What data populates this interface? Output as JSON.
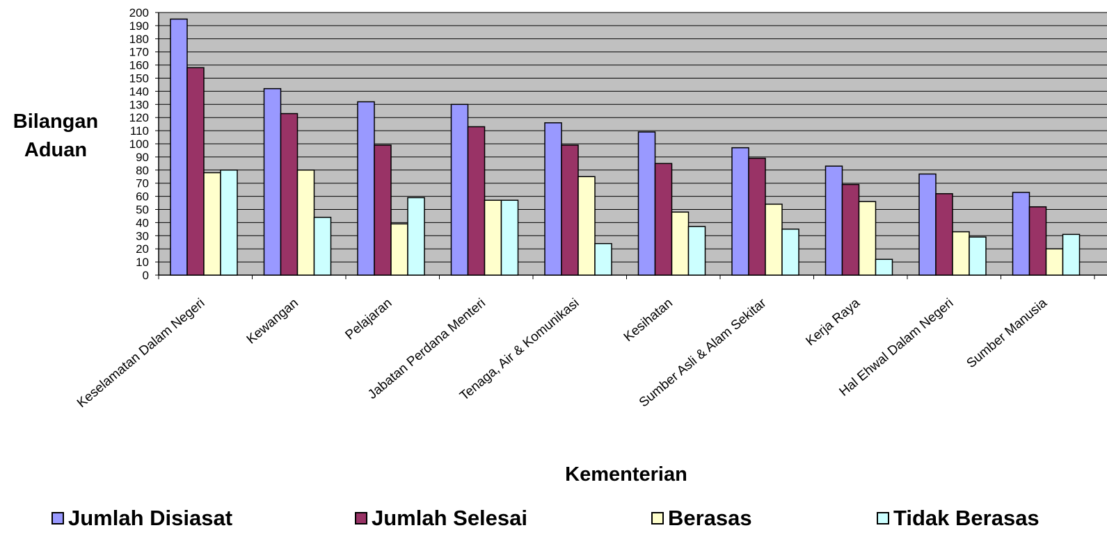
{
  "chart_data": {
    "type": "bar",
    "title": "",
    "xlabel": "Kementerian",
    "ylabel": [
      "Bilangan",
      "Aduan"
    ],
    "ylim": [
      0,
      200
    ],
    "ytick_step": 10,
    "grid": true,
    "plot_background": "#c0c0c0",
    "legend_position": "bottom",
    "categories": [
      "Keselamatan Dalam Negeri",
      "Kewangan",
      "Pelajaran",
      "Jabatan Perdana Menteri",
      "Tenaga, Air & Komunikasi",
      "Kesihatan",
      "Sumber Asli & Alam Sekitar",
      "Kerja Raya",
      "Hal Ehwal Dalam Negeri",
      "Sumber Manusia"
    ],
    "series": [
      {
        "name": "Jumlah Disiasat",
        "color": "#9999ff",
        "values": [
          195,
          142,
          132,
          130,
          116,
          109,
          97,
          83,
          77,
          63
        ]
      },
      {
        "name": "Jumlah Selesai",
        "color": "#993366",
        "values": [
          158,
          123,
          99,
          113,
          99,
          85,
          89,
          69,
          62,
          52
        ]
      },
      {
        "name": "Berasas",
        "color": "#ffffcc",
        "values": [
          78,
          80,
          39,
          57,
          75,
          48,
          54,
          56,
          33,
          20
        ]
      },
      {
        "name": "Tidak Berasas",
        "color": "#ccffff",
        "values": [
          80,
          44,
          59,
          57,
          24,
          37,
          35,
          12,
          29,
          31
        ]
      }
    ]
  }
}
